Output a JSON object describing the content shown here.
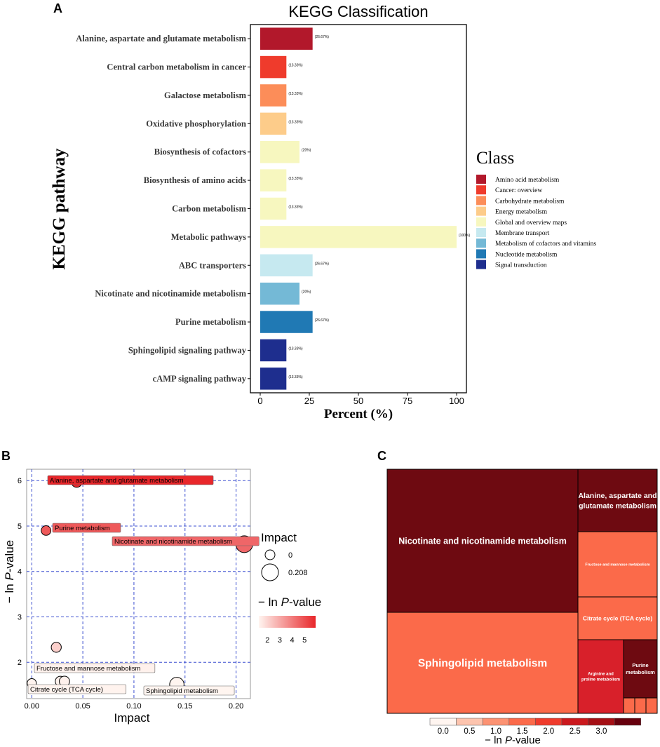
{
  "chart_data": [
    {
      "panel": "A",
      "type": "bar",
      "orientation": "horizontal",
      "title": "KEGG Classification",
      "xlabel": "Percent (%)",
      "ylabel": "KEGG pathway",
      "xlim": [
        -5,
        105
      ],
      "xticks": [
        0,
        25,
        50,
        75,
        100
      ],
      "categories": [
        "Alanine, aspartate and glutamate metabolism",
        "Central carbon metabolism in cancer",
        "Galactose metabolism",
        "Oxidative phosphorylation",
        "Biosynthesis of cofactors",
        "Biosynthesis of amino acids",
        "Carbon metabolism",
        "Metabolic pathways",
        "ABC transporters",
        "Nicotinate and nicotinamide metabolism",
        "Purine metabolism",
        "Sphingolipid signaling pathway",
        "cAMP signaling pathway"
      ],
      "values": [
        26.67,
        13.33,
        13.33,
        13.33,
        20,
        13.33,
        13.33,
        100,
        26.67,
        20,
        26.67,
        13.33,
        13.33
      ],
      "value_labels": [
        "(26.67%)",
        "(13.33%)",
        "(13.33%)",
        "(13.33%)",
        "(20%)",
        "(13.33%)",
        "(13.33%)",
        "(100%)",
        "(26.67%)",
        "(20%)",
        "(26.67%)",
        "(13.33%)",
        "(13.33%)"
      ],
      "class_of_bar": [
        0,
        1,
        2,
        3,
        4,
        4,
        4,
        4,
        5,
        6,
        7,
        8,
        8
      ],
      "legend_title": "Class",
      "legend_position": "right",
      "classes": [
        {
          "name": "Amino acid metabolism",
          "color": "#B2182B"
        },
        {
          "name": "Cancer: overview",
          "color": "#EF3B2C"
        },
        {
          "name": "Carbohydrate metabolism",
          "color": "#FC8D59"
        },
        {
          "name": "Energy metabolism",
          "color": "#FDCC8A"
        },
        {
          "name": "Global and overview maps",
          "color": "#F7F7BF"
        },
        {
          "name": "Membrane transport",
          "color": "#C6E9F0"
        },
        {
          "name": "Metabolism of cofactors and vitamins",
          "color": "#74B9D6"
        },
        {
          "name": "Nucleotide metabolism",
          "color": "#2079B4"
        },
        {
          "name": "Signal transduction",
          "color": "#1E2E8E"
        }
      ]
    },
    {
      "panel": "B",
      "type": "scatter",
      "xlabel": "Impact",
      "ylabel_prefix": "− ln ",
      "ylabel_italic": "P",
      "ylabel_suffix": "-value",
      "xlim": [
        -0.005,
        0.214
      ],
      "ylim": [
        1.2,
        6.25
      ],
      "xticks": [
        0.0,
        0.05,
        0.1,
        0.15,
        0.2
      ],
      "xtick_labels": [
        "0.00",
        "0.05",
        "0.10",
        "0.15",
        "0.20"
      ],
      "yticks": [
        2,
        3,
        4,
        5,
        6
      ],
      "grid": true,
      "points": [
        {
          "name": "Alanine, aspartate and glutamate metabolism",
          "x": 0.044,
          "y": 5.97,
          "labeled": true
        },
        {
          "name": "Purine metabolism",
          "x": 0.014,
          "y": 4.9,
          "labeled": true
        },
        {
          "name": "Nicotinate and nicotinamide metabolism",
          "x": 0.208,
          "y": 4.6,
          "labeled": true
        },
        {
          "name": "",
          "x": 0.024,
          "y": 2.33,
          "labeled": false
        },
        {
          "name": "Fructose and mannose metabolism",
          "x": 0.028,
          "y": 1.58,
          "labeled": true
        },
        {
          "name": "",
          "x": 0.032,
          "y": 1.58,
          "labeled": false
        },
        {
          "name": "Citrate cycle (TCA cycle)",
          "x": 0.0,
          "y": 1.54,
          "labeled": true
        },
        {
          "name": "Sphingolipid metabolism",
          "x": 0.142,
          "y": 1.51,
          "labeled": true
        }
      ],
      "size_legend_title": "Impact",
      "size_legend_values": [
        0,
        0.208
      ],
      "size_legend_labels": [
        "0",
        "0.208"
      ],
      "color_legend_title_prefix": "− ln ",
      "color_legend_title_italic": "P",
      "color_legend_title_suffix": "-value",
      "color_legend_ticks": [
        2,
        3,
        4,
        5
      ],
      "color_low": "#FFF5F0",
      "color_high": "#E8262A"
    },
    {
      "panel": "C",
      "type": "treemap",
      "items": [
        {
          "name": "Nicotinate and nicotinamide metabolism",
          "value": 4.6
        },
        {
          "name": "Sphingolipid metabolism",
          "value": 1.51
        },
        {
          "name": "Alanine, aspartate and glutamate metabolism",
          "value": 5.97
        },
        {
          "name": "Fructose and mannose metabolism",
          "value": 1.58
        },
        {
          "name": "Citrate cycle (TCA cycle)",
          "value": 1.54
        },
        {
          "name": "Arginine and proline metabolism",
          "value": 2.33
        },
        {
          "name": "Purine metabolism",
          "value": 4.9
        },
        {
          "name": "",
          "value": 1.5
        },
        {
          "name": "",
          "value": 1.5
        },
        {
          "name": "",
          "value": 1.5
        }
      ],
      "colorbar_ticks": [
        "0.0",
        "0.5",
        "1.0",
        "1.5",
        "2.0",
        "2.5",
        "3.0"
      ],
      "colorbar_colors": [
        "#FFF5F0",
        "#FDC4AE",
        "#FC9272",
        "#FB6A4A",
        "#EF3B2C",
        "#CB181D",
        "#A50F15",
        "#67000D"
      ],
      "colorbar_title_prefix": "− ln ",
      "colorbar_title_italic": "P",
      "colorbar_title_suffix": "-value"
    }
  ],
  "panel_labels": {
    "a": "A",
    "b": "B",
    "c": "C"
  }
}
